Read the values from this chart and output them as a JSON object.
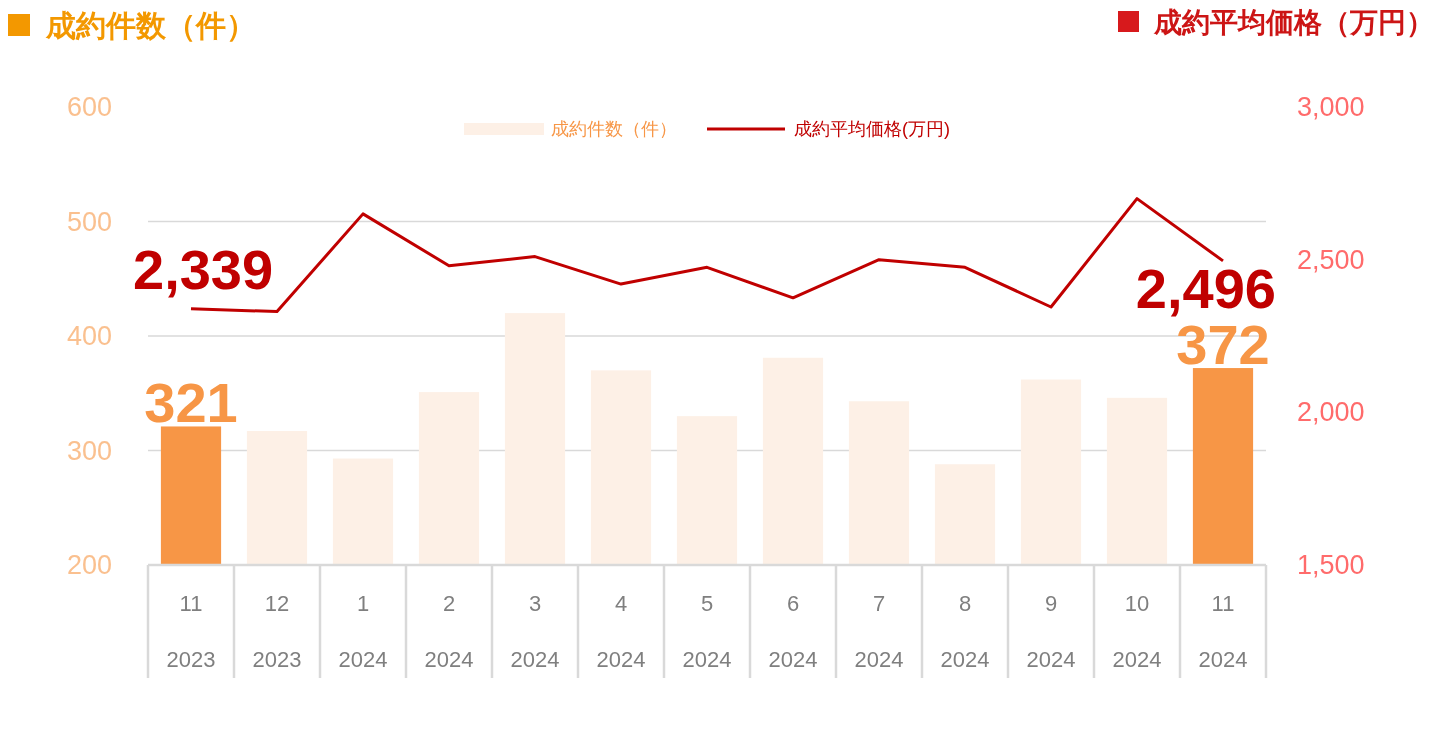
{
  "chart_data": {
    "type": "bar",
    "ylabel": "成約件数（件）",
    "y2label": "成約平均価格（万円）",
    "categories": [
      "11\n2023",
      "12\n2023",
      "1\n2024",
      "2\n2024",
      "3\n2024",
      "4\n2024",
      "5\n2024",
      "6\n2024",
      "7\n2024",
      "8\n2024",
      "9\n2024",
      "10\n2024",
      "11\n2024"
    ],
    "series": [
      {
        "name": "成約件数（件）",
        "color": "#fdf0e6",
        "colors": [
          "#f79646",
          "#fdf0e6",
          "#fdf0e6",
          "#fdf0e6",
          "#fdf0e6",
          "#fdf0e6",
          "#fdf0e6",
          "#fdf0e6",
          "#fdf0e6",
          "#fdf0e6",
          "#fdf0e6",
          "#fdf0e6",
          "#f79646"
        ],
        "values": [
          321,
          317,
          293,
          351,
          420,
          370,
          330,
          381,
          343,
          288,
          362,
          346,
          372
        ],
        "value_labels": [
          "321",
          null,
          null,
          null,
          null,
          null,
          null,
          null,
          null,
          null,
          null,
          null,
          "372"
        ]
      },
      {
        "name": "成約平均価格(万円)",
        "type": "line",
        "axis": "y2",
        "color": "#c00000",
        "values": [
          2339,
          2330,
          2650,
          2480,
          2510,
          2420,
          2475,
          2375,
          2500,
          2475,
          2345,
          2700,
          2496
        ],
        "value_labels": [
          "2,339",
          null,
          null,
          null,
          null,
          null,
          null,
          null,
          null,
          null,
          null,
          null,
          "2,496"
        ]
      }
    ],
    "ylim": [
      200,
      600
    ],
    "yticks": [
      200,
      300,
      400,
      500,
      600
    ],
    "y2lim": [
      1500,
      3000
    ],
    "y2ticks": [
      {
        "value": 1500,
        "label": "1,500"
      },
      {
        "value": 2000,
        "label": "2,000"
      },
      {
        "value": 2500,
        "label": "2,500"
      },
      {
        "value": 3000,
        "label": "3,000"
      }
    ],
    "grid": "y",
    "legend": "top"
  }
}
